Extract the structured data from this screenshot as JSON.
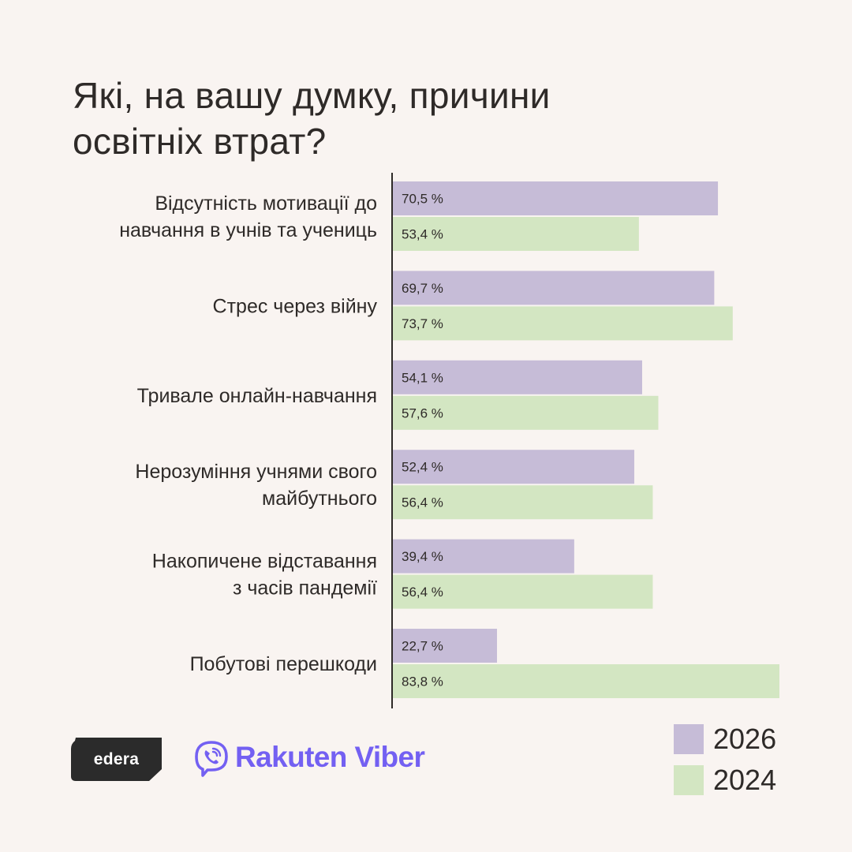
{
  "title_lines": [
    "Які, на вашу думку, причини",
    "освітніх втрат?"
  ],
  "chart_data": {
    "type": "bar",
    "orientation": "horizontal",
    "categories": [
      [
        "Відсутність мотивації до",
        "навчання в учнів та учениць"
      ],
      [
        "Стрес через війну"
      ],
      [
        "Тривале онлайн-навчання"
      ],
      [
        "Нерозуміння учнями свого",
        "майбутнього"
      ],
      [
        "Накопичене відставання",
        "з часів пандемії"
      ],
      [
        "Побутові перешкоди"
      ]
    ],
    "series": [
      {
        "name": "2026",
        "color": "#c6bcd7",
        "values": [
          70.5,
          69.7,
          54.1,
          52.4,
          39.4,
          22.7
        ],
        "labels": [
          "70,5 %",
          "69,7 %",
          "54,1 %",
          "52,4 %",
          "39,4 %",
          "22,7 %"
        ]
      },
      {
        "name": "2024",
        "color": "#d3e6c2",
        "values": [
          53.4,
          73.7,
          57.6,
          56.4,
          56.4,
          83.8
        ],
        "labels": [
          "53,4 %",
          "73,7 %",
          "57,6 %",
          "56,4 %",
          "56,4 %",
          "83,8 %"
        ]
      }
    ],
    "xlim": [
      0,
      83.8
    ],
    "legend": "bottom-right"
  },
  "logos": {
    "edera": "edera",
    "viber": "Rakuten Viber",
    "viber_color": "#7360f2",
    "edera_color": "#2b2b2b"
  }
}
